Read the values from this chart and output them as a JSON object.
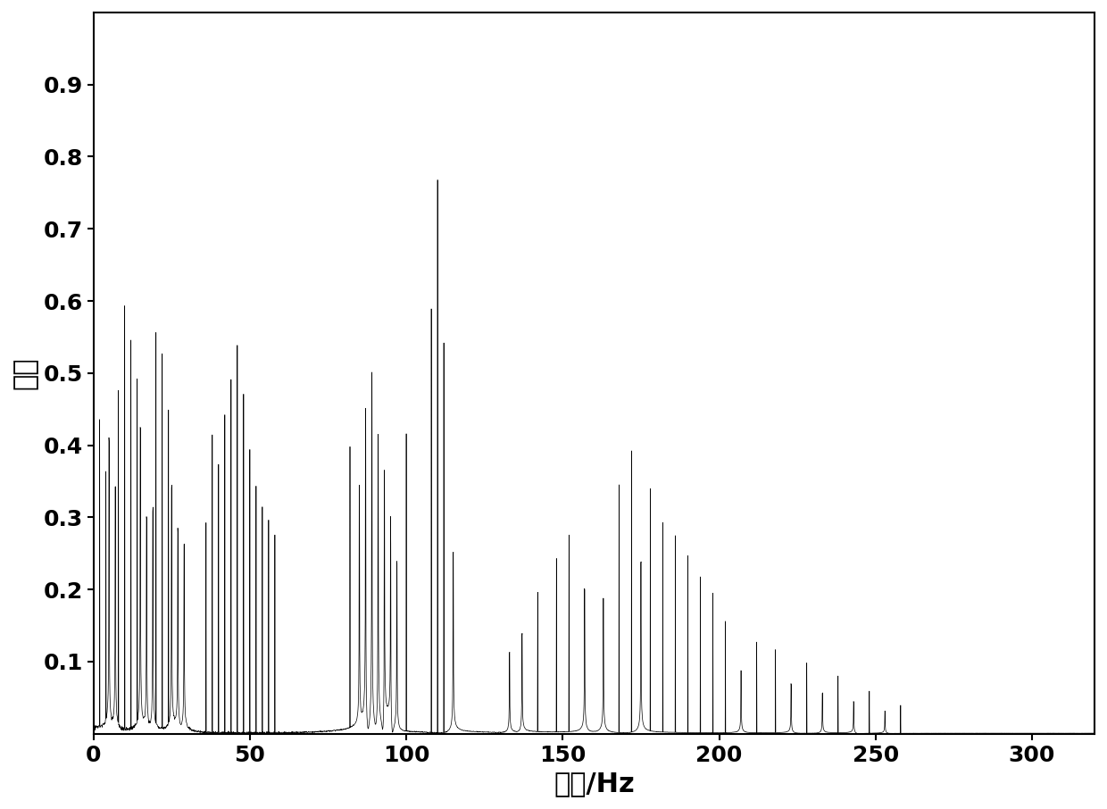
{
  "xlabel": "频率/Hz",
  "ylabel": "振幅",
  "xlim": [
    0,
    320
  ],
  "ylim": [
    0,
    1.0
  ],
  "xticks": [
    0,
    50,
    100,
    150,
    200,
    250,
    300
  ],
  "yticks": [
    0.1,
    0.2,
    0.3,
    0.4,
    0.5,
    0.6,
    0.7,
    0.8,
    0.9
  ],
  "line_color": "#000000",
  "background_color": "#ffffff",
  "line_width": 0.5,
  "xlabel_fontsize": 22,
  "ylabel_fontsize": 22,
  "tick_fontsize": 18,
  "seed": 7,
  "n_samples": 8000,
  "sample_rate": 640
}
